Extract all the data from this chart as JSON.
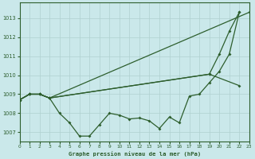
{
  "title": "Graphe pression niveau de la mer (hPa)",
  "bg_color": "#cae8ea",
  "line_color": "#2d5e2d",
  "grid_color": "#b0d0d0",
  "ylim": [
    1006.5,
    1013.8
  ],
  "yticks": [
    1007,
    1008,
    1009,
    1010,
    1011,
    1012,
    1013
  ],
  "xlim": [
    0,
    23
  ],
  "series1_x": [
    0,
    1,
    2,
    3,
    4,
    5,
    6,
    7,
    8,
    9,
    10,
    11,
    12,
    13,
    14,
    15,
    16,
    17,
    18,
    19,
    20,
    21,
    22
  ],
  "series1_y": [
    1008.7,
    1009.0,
    1009.0,
    1008.8,
    1008.0,
    1007.5,
    1006.8,
    1006.8,
    1007.4,
    1008.0,
    1007.9,
    1007.7,
    1007.75,
    1007.6,
    1007.2,
    1007.8,
    1007.5,
    1008.9,
    1009.0,
    1009.6,
    1010.2,
    1011.1,
    1013.3
  ],
  "series2_x": [
    0,
    1,
    2,
    3,
    23
  ],
  "series2_y": [
    1008.7,
    1009.0,
    1009.0,
    1008.8,
    1013.3
  ],
  "series3_x": [
    0,
    1,
    2,
    3,
    19,
    20,
    21,
    22
  ],
  "series3_y": [
    1008.7,
    1009.0,
    1009.0,
    1008.8,
    1010.05,
    1011.1,
    1012.3,
    1013.3
  ],
  "series4_x": [
    0,
    1,
    2,
    3,
    19,
    22
  ],
  "series4_y": [
    1008.7,
    1009.0,
    1009.0,
    1008.8,
    1010.05,
    1009.45
  ]
}
